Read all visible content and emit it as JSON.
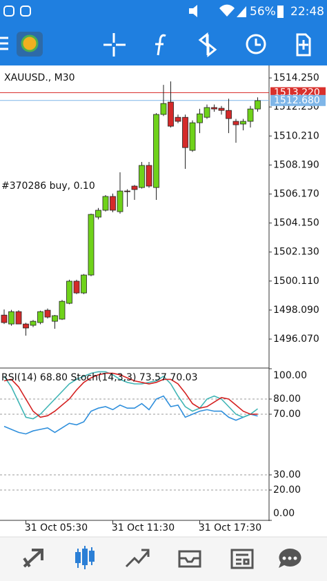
{
  "status_bar": {
    "battery": "56%",
    "time": "22:48"
  },
  "chart_data": [
    {
      "type": "candlestick",
      "title": "XAUUSD., M30",
      "annotation": "#370286 buy, 0.10",
      "categories": [
        null,
        null,
        null,
        "31 Oct 05:30",
        null,
        null,
        null,
        null,
        null,
        null,
        null,
        null,
        null,
        null,
        null,
        "31 Oct 11:30",
        null,
        null,
        null,
        null,
        null,
        null,
        null,
        null,
        null,
        null,
        null,
        "31 Oct 17:30",
        null,
        null,
        null,
        null,
        null,
        null,
        null,
        null
      ],
      "open": [
        1497.74,
        1497.12,
        1497.98,
        1497.12,
        1497.03,
        1497.22,
        1498.08,
        1497.31,
        1497.46,
        1498.56,
        1500.1,
        1499.28,
        1500.53,
        1504.56,
        1505.04,
        1506.0,
        1504.94,
        1506.38,
        1506.72,
        1506.62,
        1508.16,
        1506.62,
        1511.71,
        1512.57,
        1511.51,
        1511.51,
        1509.21,
        1511.13,
        1511.51,
        1512.19,
        1512.14,
        1511.99,
        1511.23,
        1511.04,
        1511.23,
        1512.09
      ],
      "high": [
        1498.13,
        1498.1,
        1498.08,
        1497.2,
        1497.4,
        1498.05,
        1498.2,
        1497.75,
        1498.8,
        1500.2,
        1500.2,
        1500.6,
        1504.8,
        1505.2,
        1506.1,
        1506.2,
        1507.68,
        1506.5,
        1506.8,
        1508.4,
        1508.4,
        1511.8,
        1513.77,
        1514.01,
        1511.7,
        1511.7,
        1511.3,
        1512.1,
        1512.4,
        1512.4,
        1512.3,
        1512.8,
        1511.4,
        1511.4,
        1512.3,
        1512.9
      ],
      "low": [
        1497.12,
        1497.0,
        1497.1,
        1496.31,
        1496.9,
        1497.1,
        1497.5,
        1496.79,
        1497.4,
        1498.5,
        1499.2,
        1499.2,
        1500.45,
        1504.4,
        1504.95,
        1504.9,
        1504.8,
        1505.28,
        1505.76,
        1506.55,
        1506.6,
        1505.76,
        1511.6,
        1510.8,
        1511.1,
        1507.92,
        1509.1,
        1510.41,
        1511.4,
        1511.9,
        1511.7,
        1510.41,
        1509.74,
        1510.6,
        1510.8,
        1511.9
      ],
      "close": [
        1497.22,
        1497.98,
        1497.12,
        1496.84,
        1497.31,
        1497.98,
        1497.6,
        1497.7,
        1498.7,
        1500.1,
        1499.28,
        1500.53,
        1504.75,
        1505.04,
        1506.0,
        1505.04,
        1506.38,
        1506.33,
        1506.48,
        1508.16,
        1506.72,
        1511.71,
        1512.47,
        1510.89,
        1511.23,
        1509.4,
        1511.13,
        1511.75,
        1512.19,
        1512.09,
        1511.99,
        1511.42,
        1510.99,
        1511.23,
        1512.09,
        1512.67
      ],
      "up_color": "#6fd21a",
      "down_color": "#d42a2a",
      "ylim": [
        1494.15,
        1515.07
      ],
      "yticks": [
        {
          "value": 1514.25,
          "label": "1514.250"
        },
        {
          "value": 1512.23,
          "label": "1512.230"
        },
        {
          "value": 1510.21,
          "label": "1510.210"
        },
        {
          "value": 1508.19,
          "label": "1508.190"
        },
        {
          "value": 1506.17,
          "label": "1506.170"
        },
        {
          "value": 1504.15,
          "label": "1504.150"
        },
        {
          "value": 1502.13,
          "label": "1502.130"
        },
        {
          "value": 1500.11,
          "label": "1500.110"
        },
        {
          "value": 1498.09,
          "label": "1498.090"
        },
        {
          "value": 1496.07,
          "label": "1496.070"
        }
      ],
      "price_lines": [
        {
          "value": 1513.22,
          "label": "1513.220",
          "color": "#d9302c"
        },
        {
          "value": 1512.68,
          "label": "1512.680",
          "color": "#7fb6e8"
        }
      ]
    },
    {
      "type": "line",
      "title": "RSI(14) 68.80 Stoch(14,3,3) 73.57 70.03",
      "series": [
        {
          "color": "#2f8fdc",
          "values": [
            62,
            60,
            58,
            57,
            59,
            60,
            61,
            58,
            61,
            64,
            63,
            65,
            72,
            74,
            75,
            73,
            76,
            74,
            74,
            77,
            73,
            80,
            82,
            75,
            76,
            68,
            70,
            72,
            73,
            72,
            72,
            68,
            66,
            68,
            70,
            68.8
          ]
        },
        {
          "color": "#3fb5b5",
          "values": [
            95,
            88,
            78,
            68,
            67,
            70,
            75,
            80,
            85,
            90,
            93,
            95,
            97,
            98,
            98,
            96,
            93,
            91,
            90,
            90,
            91,
            92,
            95,
            90,
            82,
            75,
            72,
            74,
            80,
            82,
            80,
            75,
            70,
            68,
            70,
            73.57
          ]
        },
        {
          "color": "#d42020",
          "values": [
            92,
            93,
            88,
            80,
            72,
            68,
            69,
            72,
            76,
            80,
            86,
            91,
            94,
            96,
            97,
            97,
            96,
            94,
            92,
            91,
            90,
            91,
            93,
            93,
            90,
            84,
            77,
            74,
            75,
            78,
            81,
            80,
            76,
            72,
            70,
            70.03
          ]
        }
      ],
      "ylim": [
        0,
        100
      ],
      "yticks": [
        {
          "value": 100,
          "label": "100.00"
        },
        {
          "value": 80,
          "label": "80.00"
        },
        {
          "value": 70,
          "label": "70.00"
        },
        {
          "value": 30,
          "label": "30.00"
        },
        {
          "value": 20,
          "label": "20.00"
        },
        {
          "value": 0,
          "label": "0.00"
        }
      ],
      "levels": [
        80,
        70,
        30,
        20
      ]
    }
  ]
}
